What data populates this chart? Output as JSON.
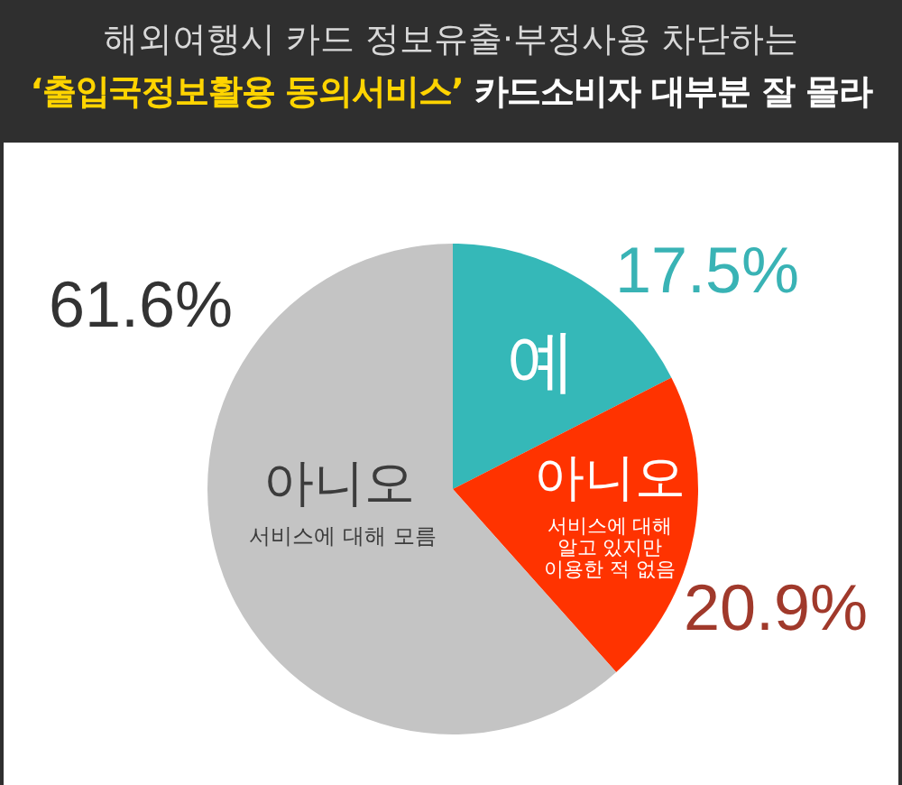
{
  "chart_data": {
    "type": "pie",
    "title": "해외여행시 카드 정보유출·부정사용 차단하는",
    "subtitle": "‘출입국정보활용 동의서비스’ 카드소비자 대부분 잘 몰라",
    "categories": [
      "예",
      "아니오",
      "아니오"
    ],
    "values": [
      17.5,
      20.9,
      61.6
    ],
    "colors": [
      "#35b8b8",
      "#ff3300",
      "#c4c4c4"
    ],
    "value_labels": [
      "17.5%",
      "20.9%",
      "61.6%"
    ],
    "annotations": [
      "서비스에 대해 알고 있지만 이용한 적 없음",
      "서비스에 대해 모름"
    ]
  }
}
